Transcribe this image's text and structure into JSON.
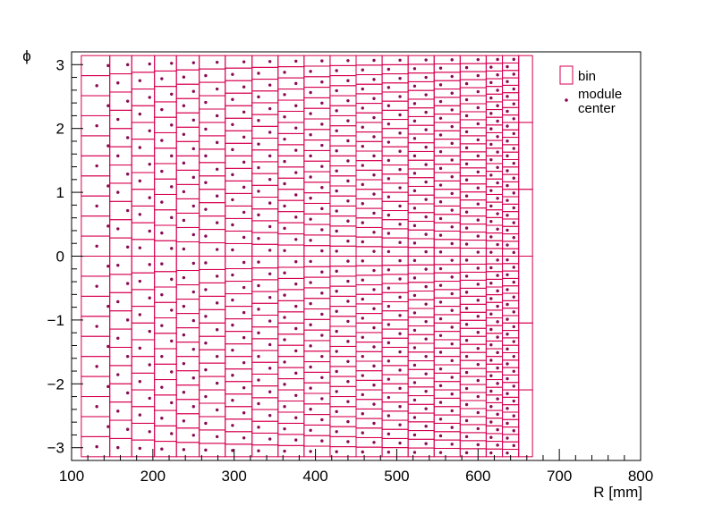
{
  "chart_data": {
    "type": "scatter",
    "title": "",
    "xlabel": "R [mm]",
    "ylabel": "ϕ",
    "xlim": [
      100,
      800
    ],
    "ylim": [
      -3.2,
      3.2
    ],
    "x_ticks": [
      100,
      200,
      300,
      400,
      500,
      600,
      700,
      800
    ],
    "y_ticks": [
      -3,
      -2,
      -1,
      0,
      1,
      2,
      3
    ],
    "grid": false,
    "legend_position": "top-right",
    "legend": [
      {
        "label": "bin"
      },
      {
        "label": "module center"
      }
    ],
    "colors": {
      "bin": "#d6004f",
      "module": "#8a0a55"
    },
    "bin_columns": [
      {
        "r_min": 112,
        "r_max": 147,
        "n_phi": 20
      },
      {
        "r_min": 147,
        "r_max": 174,
        "n_phi": 22
      },
      {
        "r_min": 174,
        "r_max": 202,
        "n_phi": 24
      },
      {
        "r_min": 202,
        "r_max": 229,
        "n_phi": 26
      },
      {
        "r_min": 229,
        "r_max": 257,
        "n_phi": 28
      },
      {
        "r_min": 257,
        "r_max": 289,
        "n_phi": 30
      },
      {
        "r_min": 289,
        "r_max": 322,
        "n_phi": 32
      },
      {
        "r_min": 322,
        "r_max": 354,
        "n_phi": 34
      },
      {
        "r_min": 354,
        "r_max": 386,
        "n_phi": 36
      },
      {
        "r_min": 386,
        "r_max": 418,
        "n_phi": 38
      },
      {
        "r_min": 418,
        "r_max": 450,
        "n_phi": 40
      },
      {
        "r_min": 450,
        "r_max": 482,
        "n_phi": 42
      },
      {
        "r_min": 482,
        "r_max": 514,
        "n_phi": 44
      },
      {
        "r_min": 514,
        "r_max": 546,
        "n_phi": 46
      },
      {
        "r_min": 546,
        "r_max": 578,
        "n_phi": 48
      },
      {
        "r_min": 578,
        "r_max": 610,
        "n_phi": 50
      },
      {
        "r_min": 610,
        "r_max": 630,
        "n_phi": 52
      },
      {
        "r_min": 630,
        "r_max": 650,
        "n_phi": 54
      },
      {
        "r_min": 650,
        "r_max": 667,
        "n_phi": 6
      }
    ],
    "module_rings": [
      {
        "r_center": 138,
        "n_modules": 20,
        "r_stagger": 14
      },
      {
        "r_center": 163,
        "n_modules": 22,
        "r_stagger": 12
      },
      {
        "r_center": 190,
        "n_modules": 24,
        "r_stagger": 12
      },
      {
        "r_center": 217,
        "n_modules": 26,
        "r_stagger": 12
      },
      {
        "r_center": 244,
        "n_modules": 28,
        "r_stagger": 12
      },
      {
        "r_center": 272,
        "n_modules": 30,
        "r_stagger": 14
      },
      {
        "r_center": 305,
        "n_modules": 32,
        "r_stagger": 14
      },
      {
        "r_center": 337,
        "n_modules": 34,
        "r_stagger": 14
      },
      {
        "r_center": 369,
        "n_modules": 36,
        "r_stagger": 14
      },
      {
        "r_center": 401,
        "n_modules": 38,
        "r_stagger": 14
      },
      {
        "r_center": 433,
        "n_modules": 40,
        "r_stagger": 14
      },
      {
        "r_center": 465,
        "n_modules": 42,
        "r_stagger": 14
      },
      {
        "r_center": 497,
        "n_modules": 44,
        "r_stagger": 14
      },
      {
        "r_center": 529,
        "n_modules": 46,
        "r_stagger": 14
      },
      {
        "r_center": 561,
        "n_modules": 48,
        "r_stagger": 14
      },
      {
        "r_center": 593,
        "n_modules": 50,
        "r_stagger": 14
      },
      {
        "r_center": 620,
        "n_modules": 52,
        "r_stagger": 8
      },
      {
        "r_center": 640,
        "n_modules": 54,
        "r_stagger": 8
      }
    ]
  }
}
